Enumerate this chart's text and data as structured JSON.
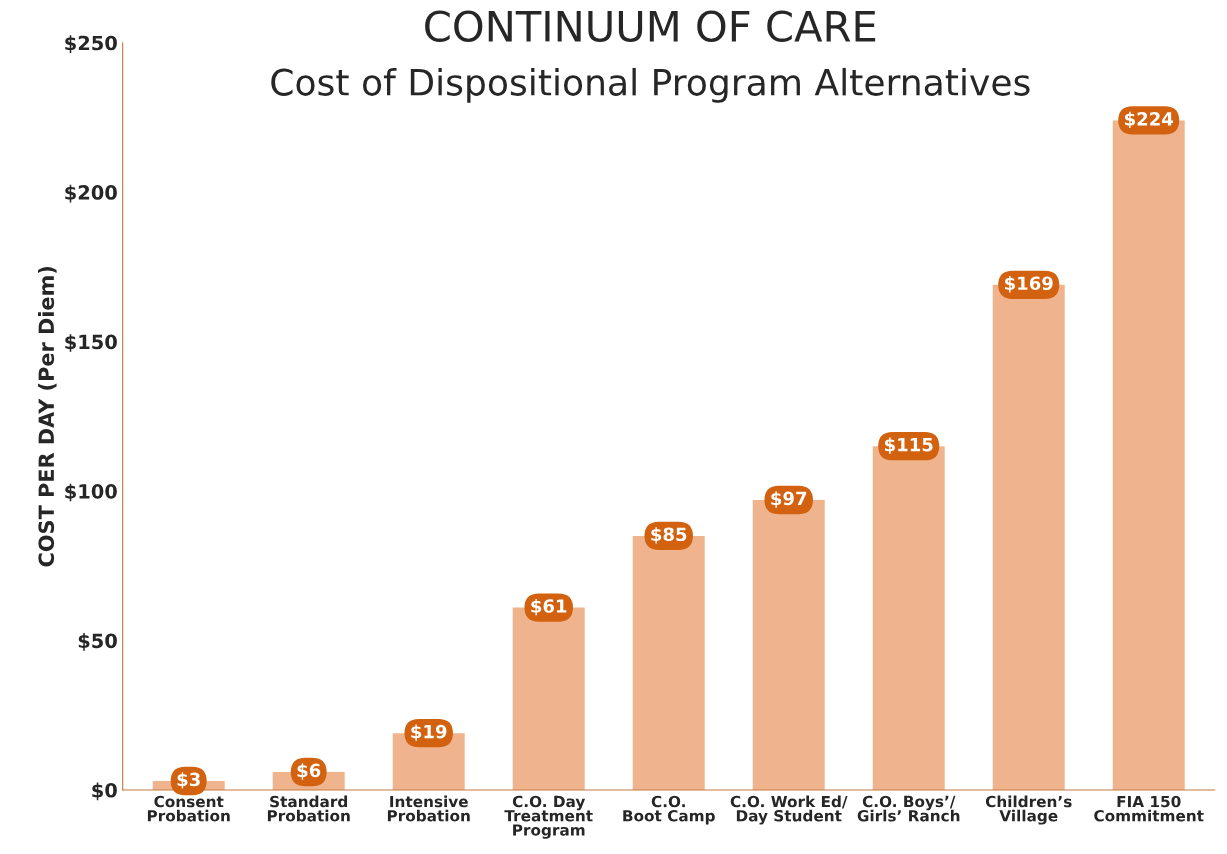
{
  "chart_data": {
    "type": "bar",
    "title": "CONTINUUM OF CARE",
    "subtitle": "Cost of Dispositional Program Alternatives",
    "ylabel": "COST PER DAY (Per Diem)",
    "categories": [
      "Consent\nProbation",
      "Standard\nProbation",
      "Intensive\nProbation",
      "C.O. Day\nTreatment\nProgram",
      "C.O.\nBoot Camp",
      "C.O. Work Ed/\nDay Student",
      "C.O. Boys’/\nGirls’ Ranch",
      "Children’s\nVillage",
      "FIA 150\nCommitment"
    ],
    "values": [
      3,
      6,
      19,
      61,
      85,
      97,
      115,
      169,
      224
    ],
    "value_labels": [
      "$3",
      "$6",
      "$19",
      "$61",
      "$85",
      "$97",
      "$115",
      "$169",
      "$224"
    ],
    "color": "#efb48e",
    "ylim": [
      0,
      250
    ],
    "yticks": [
      {
        "value": 0,
        "label": "$0"
      },
      {
        "value": 50,
        "label": "$50"
      },
      {
        "value": 100,
        "label": "$100"
      },
      {
        "value": 150,
        "label": "$150"
      },
      {
        "value": 200,
        "label": "$200"
      },
      {
        "value": 250,
        "label": "$250"
      }
    ],
    "grid": false,
    "legend": false
  }
}
